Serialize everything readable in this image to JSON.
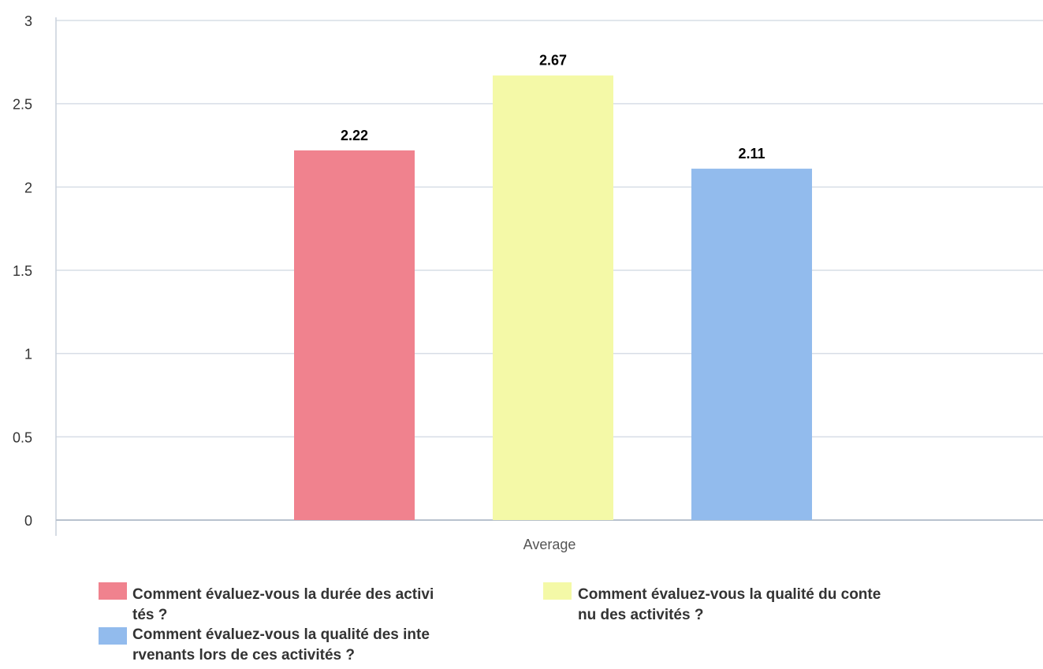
{
  "chart_data": {
    "type": "bar",
    "categories": [
      "Average"
    ],
    "series": [
      {
        "name": "Comment évaluez-vous la durée des activités ?",
        "legend_lines": [
          "Comment évaluez-vous la durée des activi",
          "tés ?"
        ],
        "values": [
          2.22
        ],
        "value_label": "2.22",
        "color": "#f0828e"
      },
      {
        "name": "Comment évaluez-vous la qualité du contenu des activités ?",
        "legend_lines": [
          "Comment évaluez-vous la qualité du conte",
          "nu des activités ?"
        ],
        "values": [
          2.67
        ],
        "value_label": "2.67",
        "color": "#f4f9a7"
      },
      {
        "name": "Comment évaluez-vous la qualité des intervenants lors de ces activités ?",
        "legend_lines": [
          "Comment évaluez-vous la qualité des inte",
          "rvenants lors de ces activités ?"
        ],
        "values": [
          2.11
        ],
        "value_label": "2.11",
        "color": "#92bbed"
      }
    ],
    "ylim": [
      0,
      3
    ],
    "yticks": [
      "0",
      "0.5",
      "1",
      "1.5",
      "2",
      "2.5",
      "3"
    ],
    "grid": true,
    "legend_position": "bottom",
    "title": "",
    "xlabel": "",
    "ylabel": ""
  }
}
